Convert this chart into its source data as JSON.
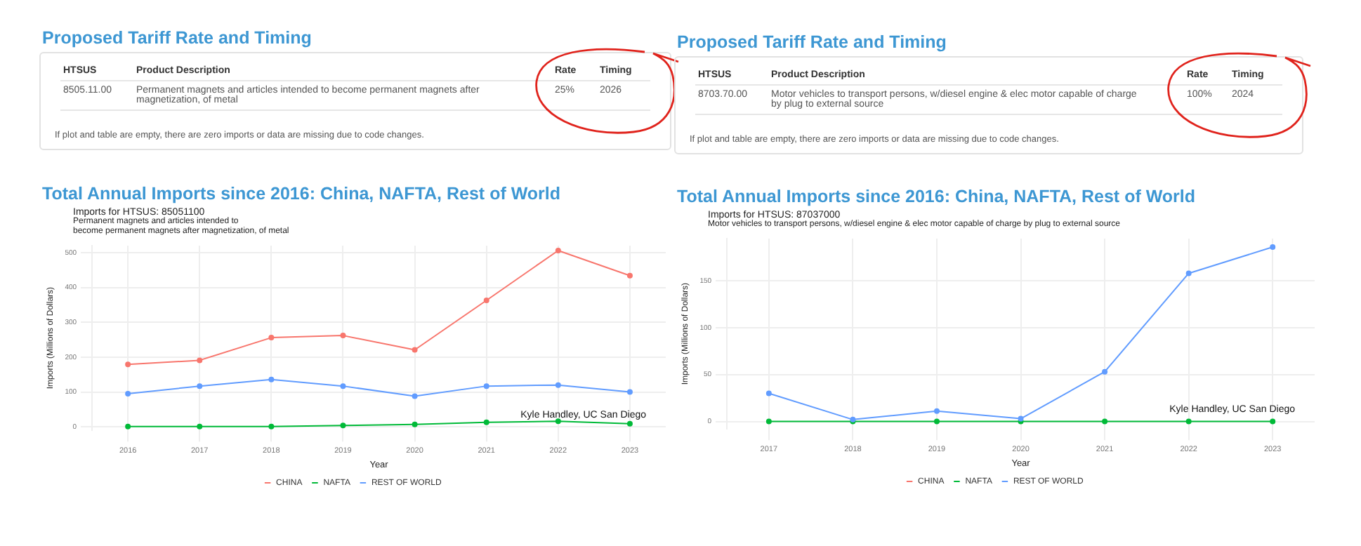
{
  "chart_data": [
    {
      "type": "other",
      "title": "Proposed Tariff Rate and Timing",
      "annotations": [
        "HTSUS",
        "Product Description",
        "Rate",
        "Timing",
        "8505.11.00",
        "Permanent magnets and articles intended to become permanent magnets after magnetization, of metal",
        "25%",
        "2026",
        "If plot and table are empty, there are zero imports or data are missing due to code changes."
      ]
    },
    {
      "type": "other",
      "title": "Proposed Tariff Rate and Timing",
      "annotations": [
        "HTSUS",
        "Product Description",
        "Rate",
        "Timing",
        "8703.70.00",
        "Motor vehicles to transport persons, w/diesel engine & elec motor capable of charge by plug to external source",
        "100%",
        "2024",
        "If plot and table are empty, there are zero imports or data are missing due to code changes."
      ]
    },
    {
      "type": "line",
      "title": "Total Annual Imports since 2016: China, NAFTA, Rest of World",
      "subtitle": "Imports for HTSUS: 85051100",
      "annotations": [
        "Permanent magnets and articles intended to\nbecome permanent magnets after magnetization, of metal",
        "Kyle Handley, UC San Diego"
      ],
      "xlabel": "Year",
      "ylabel": "Imports (Millions of Dollars)",
      "categories": [
        "2016",
        "2017",
        "2018",
        "2019",
        "2020",
        "2021",
        "2022",
        "2023"
      ],
      "ylim": [
        -10,
        520
      ],
      "yticks": [
        0,
        100,
        200,
        300,
        400,
        500
      ],
      "grid": true,
      "legend": "bottom",
      "marker": "circle",
      "line_style": "solid",
      "series": [
        {
          "name": "CHINA",
          "color": "#f8766d",
          "values": [
            179,
            191,
            256,
            262,
            221,
            363,
            506,
            434
          ]
        },
        {
          "name": "NAFTA",
          "color": "#00ba38",
          "values": [
            1,
            1,
            1,
            4,
            7,
            13,
            16,
            9
          ]
        },
        {
          "name": "REST OF WORLD",
          "color": "#619cff",
          "values": [
            95,
            117,
            136,
            117,
            88,
            117,
            120,
            100
          ]
        }
      ]
    },
    {
      "type": "line",
      "title": "Total Annual Imports since 2016: China, NAFTA, Rest of World",
      "subtitle": "Imports for HTSUS: 87037000",
      "annotations": [
        "Motor vehicles to transport persons, w/diesel engine & elec motor capable of charge by plug to external source",
        "Kyle Handley, UC San Diego"
      ],
      "xlabel": "Year",
      "ylabel": "Imports (Millions of Dollars)",
      "categories": [
        "2017",
        "2018",
        "2019",
        "2020",
        "2021",
        "2022",
        "2023"
      ],
      "ylim": [
        -8,
        195
      ],
      "yticks": [
        0,
        50,
        100,
        150
      ],
      "grid": true,
      "legend": "bottom",
      "marker": "circle",
      "line_style": "solid",
      "series": [
        {
          "name": "CHINA",
          "color": "#f8766d",
          "values": [
            null,
            null,
            null,
            null,
            null,
            null,
            null
          ]
        },
        {
          "name": "NAFTA",
          "color": "#00ba38",
          "values": [
            0,
            0,
            0,
            0,
            0,
            0,
            0
          ]
        },
        {
          "name": "REST OF WORLD",
          "color": "#619cff",
          "values": [
            30,
            2,
            11,
            3,
            53,
            158,
            186
          ]
        }
      ]
    }
  ]
}
